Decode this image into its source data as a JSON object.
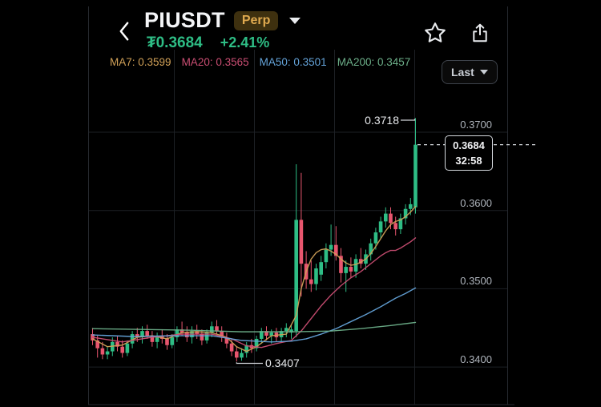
{
  "header": {
    "title": "PIUSDT",
    "contract_badge": "Perp",
    "price": "₮0.3684",
    "change": "+2.41%",
    "up_color": "#2EBD85"
  },
  "toolbar": {
    "price_scale_label": "Last"
  },
  "axis": {
    "y_labels": [
      "0.3700",
      "0.3600",
      "0.3500",
      "0.3400"
    ]
  },
  "price_marker": {
    "price": "0.3684",
    "countdown": "32:58"
  },
  "chart_data": {
    "type": "candlestick",
    "symbol": "PIUSDT",
    "title": "PIUSDT Perpetual price chart",
    "y_axis": {
      "ticks": [
        "0.3700",
        "0.3600",
        "0.3500",
        "0.3400"
      ],
      "values": [
        0.37,
        0.36,
        0.35,
        0.34
      ]
    },
    "grid": "on",
    "last_price": "0.3684",
    "last_price_value": 0.3684,
    "countdown": "32:58",
    "annotations": {
      "high": "0.3718",
      "low": "0.3407",
      "high_value": 0.3718,
      "low_value": 0.3407,
      "low_candle_index": 29
    },
    "colors": {
      "up": "#2EBD85",
      "down": "#E8566E"
    },
    "candles": [
      [
        0.3442,
        0.345,
        0.3428,
        0.3434
      ],
      [
        0.3434,
        0.344,
        0.3412,
        0.3424
      ],
      [
        0.3424,
        0.3432,
        0.341,
        0.3416
      ],
      [
        0.3416,
        0.3426,
        0.341,
        0.342
      ],
      [
        0.342,
        0.3438,
        0.3414,
        0.3432
      ],
      [
        0.3432,
        0.344,
        0.342,
        0.3426
      ],
      [
        0.3426,
        0.3434,
        0.3412,
        0.3418
      ],
      [
        0.3418,
        0.3434,
        0.3414,
        0.343
      ],
      [
        0.343,
        0.3446,
        0.3424,
        0.3442
      ],
      [
        0.3442,
        0.345,
        0.3432,
        0.3438
      ],
      [
        0.3438,
        0.3452,
        0.343,
        0.3446
      ],
      [
        0.3446,
        0.3454,
        0.3436,
        0.344
      ],
      [
        0.344,
        0.3446,
        0.3426,
        0.3432
      ],
      [
        0.3432,
        0.3444,
        0.3424,
        0.344
      ],
      [
        0.344,
        0.3448,
        0.343,
        0.3436
      ],
      [
        0.3436,
        0.3442,
        0.3422,
        0.3428
      ],
      [
        0.3428,
        0.3442,
        0.3424,
        0.3438
      ],
      [
        0.3438,
        0.3452,
        0.3432,
        0.3448
      ],
      [
        0.3448,
        0.3458,
        0.344,
        0.3444
      ],
      [
        0.3444,
        0.3452,
        0.3432,
        0.3438
      ],
      [
        0.3438,
        0.3452,
        0.343,
        0.3446
      ],
      [
        0.3446,
        0.3454,
        0.3436,
        0.3442
      ],
      [
        0.3442,
        0.3448,
        0.3428,
        0.3434
      ],
      [
        0.3434,
        0.3448,
        0.343,
        0.3444
      ],
      [
        0.3444,
        0.3458,
        0.3438,
        0.3452
      ],
      [
        0.3452,
        0.346,
        0.3442,
        0.3446
      ],
      [
        0.3446,
        0.3452,
        0.3432,
        0.3438
      ],
      [
        0.3438,
        0.3444,
        0.3424,
        0.343
      ],
      [
        0.343,
        0.3436,
        0.3414,
        0.342
      ],
      [
        0.342,
        0.3426,
        0.3407,
        0.3412
      ],
      [
        0.3412,
        0.3424,
        0.3408,
        0.3418
      ],
      [
        0.3418,
        0.3432,
        0.3412,
        0.3428
      ],
      [
        0.3428,
        0.3436,
        0.3418,
        0.3424
      ],
      [
        0.3424,
        0.344,
        0.342,
        0.3436
      ],
      [
        0.3436,
        0.345,
        0.343,
        0.3446
      ],
      [
        0.3446,
        0.3452,
        0.3434,
        0.344
      ],
      [
        0.344,
        0.3448,
        0.343,
        0.3444
      ],
      [
        0.3444,
        0.345,
        0.3432,
        0.3438
      ],
      [
        0.3438,
        0.345,
        0.3432,
        0.3446
      ],
      [
        0.3446,
        0.3456,
        0.3438,
        0.345
      ],
      [
        0.3444,
        0.3454,
        0.3436,
        0.3448
      ],
      [
        0.3446,
        0.3659,
        0.3438,
        0.3588
      ],
      [
        0.3588,
        0.3648,
        0.349,
        0.3532
      ],
      [
        0.3532,
        0.3548,
        0.35,
        0.3512
      ],
      [
        0.3512,
        0.3536,
        0.3496,
        0.3506
      ],
      [
        0.3506,
        0.3532,
        0.3498,
        0.3526
      ],
      [
        0.3518,
        0.3542,
        0.351,
        0.3534
      ],
      [
        0.3534,
        0.3558,
        0.3526,
        0.355
      ],
      [
        0.355,
        0.3582,
        0.3542,
        0.3556
      ],
      [
        0.3556,
        0.358,
        0.3536,
        0.3542
      ],
      [
        0.3542,
        0.3552,
        0.3508,
        0.352
      ],
      [
        0.352,
        0.3536,
        0.3496,
        0.3528
      ],
      [
        0.3528,
        0.354,
        0.3514,
        0.3522
      ],
      [
        0.3522,
        0.3544,
        0.3514,
        0.3538
      ],
      [
        0.3538,
        0.3552,
        0.3526,
        0.3532
      ],
      [
        0.3532,
        0.355,
        0.3524,
        0.3544
      ],
      [
        0.3544,
        0.3564,
        0.3536,
        0.3558
      ],
      [
        0.3558,
        0.3578,
        0.355,
        0.3572
      ],
      [
        0.3572,
        0.3592,
        0.3564,
        0.3586
      ],
      [
        0.3586,
        0.3604,
        0.3578,
        0.3596
      ],
      [
        0.3596,
        0.3604,
        0.3576,
        0.3584
      ],
      [
        0.3584,
        0.3592,
        0.3568,
        0.3576
      ],
      [
        0.3576,
        0.3596,
        0.357,
        0.359
      ],
      [
        0.359,
        0.3608,
        0.3582,
        0.3602
      ],
      [
        0.3602,
        0.3616,
        0.3594,
        0.3608
      ],
      [
        0.3604,
        0.3718,
        0.3596,
        0.3684
      ]
    ],
    "moving_averages": [
      {
        "name": "MA7",
        "value": "0.3599",
        "label": "MA7: 0.3599",
        "color": "#D0A057",
        "points": [
          [
            0,
            0.3436
          ],
          [
            3,
            0.3426
          ],
          [
            6,
            0.3428
          ],
          [
            9,
            0.3438
          ],
          [
            12,
            0.344
          ],
          [
            15,
            0.3436
          ],
          [
            18,
            0.3444
          ],
          [
            21,
            0.3445
          ],
          [
            24,
            0.3444
          ],
          [
            27,
            0.3438
          ],
          [
            29,
            0.3426
          ],
          [
            31,
            0.342
          ],
          [
            33,
            0.3426
          ],
          [
            36,
            0.344
          ],
          [
            39,
            0.3442
          ],
          [
            41,
            0.3466
          ],
          [
            42,
            0.35
          ],
          [
            43,
            0.3522
          ],
          [
            44,
            0.3538
          ],
          [
            45,
            0.3546
          ],
          [
            46,
            0.355
          ],
          [
            47,
            0.3551
          ],
          [
            48,
            0.3548
          ],
          [
            49,
            0.3544
          ],
          [
            50,
            0.3538
          ],
          [
            51,
            0.3533
          ],
          [
            52,
            0.353
          ],
          [
            53,
            0.3531
          ],
          [
            54,
            0.3534
          ],
          [
            55,
            0.3538
          ],
          [
            56,
            0.3545
          ],
          [
            57,
            0.3554
          ],
          [
            58,
            0.3564
          ],
          [
            59,
            0.3574
          ],
          [
            60,
            0.3582
          ],
          [
            61,
            0.3586
          ],
          [
            62,
            0.3588
          ],
          [
            63,
            0.3592
          ],
          [
            64,
            0.3598
          ],
          [
            65,
            0.3605
          ]
        ]
      },
      {
        "name": "MA20",
        "value": "0.3565",
        "label": "MA20: 0.3565",
        "color": "#CB4E73",
        "points": [
          [
            0,
            0.3438
          ],
          [
            6,
            0.3432
          ],
          [
            12,
            0.3438
          ],
          [
            18,
            0.3442
          ],
          [
            24,
            0.3442
          ],
          [
            28,
            0.3436
          ],
          [
            31,
            0.3427
          ],
          [
            34,
            0.3425
          ],
          [
            37,
            0.343
          ],
          [
            40,
            0.3434
          ],
          [
            42,
            0.3446
          ],
          [
            44,
            0.3462
          ],
          [
            46,
            0.3478
          ],
          [
            48,
            0.3492
          ],
          [
            50,
            0.3504
          ],
          [
            52,
            0.3514
          ],
          [
            54,
            0.3522
          ],
          [
            56,
            0.3532
          ],
          [
            58,
            0.3542
          ],
          [
            59,
            0.3546
          ],
          [
            60,
            0.3549
          ],
          [
            61,
            0.3549
          ],
          [
            62,
            0.3552
          ],
          [
            63,
            0.3556
          ],
          [
            64,
            0.356
          ],
          [
            65,
            0.3565
          ]
        ]
      },
      {
        "name": "MA50",
        "value": "0.3501",
        "label": "MA50: 0.3501",
        "color": "#64A3D9",
        "points": [
          [
            0,
            0.3441
          ],
          [
            8,
            0.3439
          ],
          [
            16,
            0.344
          ],
          [
            24,
            0.344
          ],
          [
            30,
            0.3434
          ],
          [
            36,
            0.3432
          ],
          [
            40,
            0.3433
          ],
          [
            43,
            0.3436
          ],
          [
            46,
            0.3442
          ],
          [
            49,
            0.3449
          ],
          [
            52,
            0.3458
          ],
          [
            55,
            0.3467
          ],
          [
            58,
            0.3477
          ],
          [
            61,
            0.3488
          ],
          [
            63,
            0.3494
          ],
          [
            65,
            0.3501
          ]
        ]
      },
      {
        "name": "MA200",
        "value": "0.3457",
        "label": "MA200: 0.3457",
        "color": "#6DB08A",
        "points": [
          [
            0,
            0.3449
          ],
          [
            10,
            0.3448
          ],
          [
            20,
            0.3447
          ],
          [
            30,
            0.3445
          ],
          [
            40,
            0.3445
          ],
          [
            48,
            0.3446
          ],
          [
            54,
            0.3449
          ],
          [
            60,
            0.3453
          ],
          [
            65,
            0.3457
          ]
        ]
      }
    ]
  }
}
